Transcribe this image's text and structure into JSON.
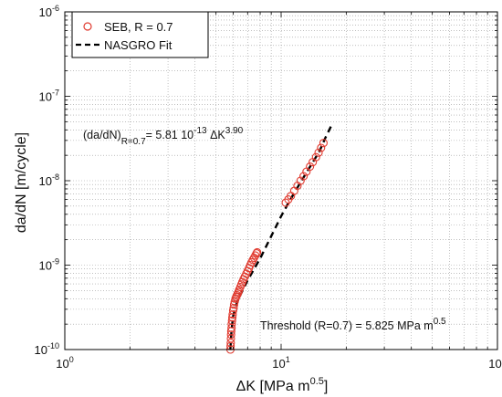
{
  "chart_data": {
    "type": "scatter",
    "xlabel_main": "ΔK [MPa m",
    "xlabel_sup": "0.5",
    "xlabel_end": "]",
    "ylabel": "da/dN [m/cycle]",
    "x_scale": "log",
    "y_scale": "log",
    "xlim": [
      1,
      100
    ],
    "ylim": [
      1e-10,
      1e-06
    ],
    "x_ticks": [
      {
        "value": 1,
        "base": "10",
        "exp": "0"
      },
      {
        "value": 10,
        "base": "10",
        "exp": "1"
      },
      {
        "value": 100,
        "base": "10",
        "exp": "2"
      }
    ],
    "y_ticks": [
      {
        "value": 1e-10,
        "base": "10",
        "exp": "-10"
      },
      {
        "value": 1e-09,
        "base": "10",
        "exp": "-9"
      },
      {
        "value": 1e-08,
        "base": "10",
        "exp": "-8"
      },
      {
        "value": 1e-07,
        "base": "10",
        "exp": "-7"
      },
      {
        "value": 1e-06,
        "base": "10",
        "exp": "-6"
      }
    ],
    "grid": true,
    "legend_position": "top-left",
    "series": [
      {
        "name": "SEB, R = 0.7",
        "marker": "open-circle",
        "color": "#e03a2f",
        "x": [
          5.83,
          5.84,
          5.85,
          5.86,
          5.87,
          5.88,
          5.9,
          5.91,
          5.93,
          5.95,
          5.97,
          6.0,
          6.03,
          6.06,
          6.1,
          6.15,
          6.2,
          6.25,
          6.3,
          6.35,
          6.4,
          6.48,
          6.55,
          6.62,
          6.7,
          6.8,
          6.9,
          7.0,
          7.1,
          7.2,
          7.3,
          7.4,
          7.5,
          7.6,
          7.7,
          7.75,
          10.5,
          10.8,
          11.1,
          11.5,
          11.9,
          12.3,
          12.7,
          13.1,
          13.6,
          14.0,
          14.5,
          14.9,
          15.3,
          15.7
        ],
        "y": [
          1e-10,
          1.1e-10,
          1.2e-10,
          1.35e-10,
          1.5e-10,
          1.65e-10,
          1.8e-10,
          2e-10,
          2.2e-10,
          2.4e-10,
          2.6e-10,
          2.9e-10,
          3.1e-10,
          3.4e-10,
          3.7e-10,
          4e-10,
          4.2e-10,
          4.4e-10,
          4.6e-10,
          4.8e-10,
          5.1e-10,
          5.5e-10,
          5.9e-10,
          6.3e-10,
          6.8e-10,
          7.3e-10,
          7.9e-10,
          8.5e-10,
          9.2e-10,
          1e-09,
          1.08e-09,
          1.15e-09,
          1.22e-09,
          1.3e-09,
          1.38e-09,
          1.42e-09,
          5.5e-09,
          6e-09,
          6.6e-09,
          7.6e-09,
          8.7e-09,
          1e-08,
          1.13e-08,
          1.28e-08,
          1.47e-08,
          1.66e-08,
          1.9e-08,
          2.15e-08,
          2.45e-08,
          2.8e-08
        ]
      },
      {
        "name": "NASGRO Fit",
        "line_style": "dashed",
        "color": "#000000",
        "x": [
          5.825,
          5.9,
          6.0,
          6.2,
          6.5,
          7.0,
          7.5,
          8.0,
          9.0,
          10.0,
          11.0,
          12.0,
          13.0,
          14.0,
          15.0,
          16.0,
          17.0
        ],
        "y": [
          1e-10,
          1.7e-10,
          2.5e-10,
          3.4e-10,
          4.5e-10,
          6.6e-10,
          9e-10,
          1.2e-09,
          2.2e-09,
          3.8e-09,
          5.9e-09,
          8.6e-09,
          1.21e-08,
          1.65e-08,
          2.2e-08,
          3.2e-08,
          4.4e-08
        ]
      }
    ],
    "annotations": {
      "equation": {
        "lhs": "(da/dN)",
        "lhs_sub": "R=0.7",
        "rhs": "= 5.81 10",
        "rhs_exp1": "-13",
        "rhs_var": " ΔK",
        "rhs_exp2": "3.90"
      },
      "threshold": {
        "text": "Threshold (R=0.7) = 5.825 MPa m",
        "sup": "0.5"
      }
    }
  }
}
